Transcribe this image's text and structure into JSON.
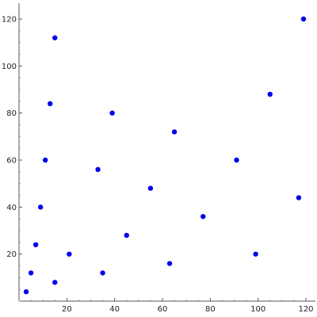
{
  "chart_data": {
    "type": "scatter",
    "title": "",
    "xlabel": "",
    "ylabel": "",
    "xlim": [
      0,
      120
    ],
    "ylim": [
      0,
      120
    ],
    "x_ticks": [
      20,
      40,
      60,
      80,
      100,
      120
    ],
    "y_ticks": [
      20,
      40,
      60,
      80,
      100,
      120
    ],
    "grid": false,
    "legend": "none",
    "point_color": "#0000ee",
    "series": [
      {
        "points": [
          {
            "x": 3,
            "y": 4
          },
          {
            "x": 5,
            "y": 12
          },
          {
            "x": 7,
            "y": 24
          },
          {
            "x": 9,
            "y": 40
          },
          {
            "x": 11,
            "y": 60
          },
          {
            "x": 13,
            "y": 84
          },
          {
            "x": 15,
            "y": 8
          },
          {
            "x": 15,
            "y": 112
          },
          {
            "x": 21,
            "y": 20
          },
          {
            "x": 33,
            "y": 56
          },
          {
            "x": 35,
            "y": 12
          },
          {
            "x": 39,
            "y": 80
          },
          {
            "x": 45,
            "y": 28
          },
          {
            "x": 55,
            "y": 48
          },
          {
            "x": 63,
            "y": 16
          },
          {
            "x": 65,
            "y": 72
          },
          {
            "x": 77,
            "y": 36
          },
          {
            "x": 91,
            "y": 60
          },
          {
            "x": 99,
            "y": 20
          },
          {
            "x": 105,
            "y": 88
          },
          {
            "x": 117,
            "y": 44
          },
          {
            "x": 119,
            "y": 120
          }
        ]
      }
    ]
  }
}
